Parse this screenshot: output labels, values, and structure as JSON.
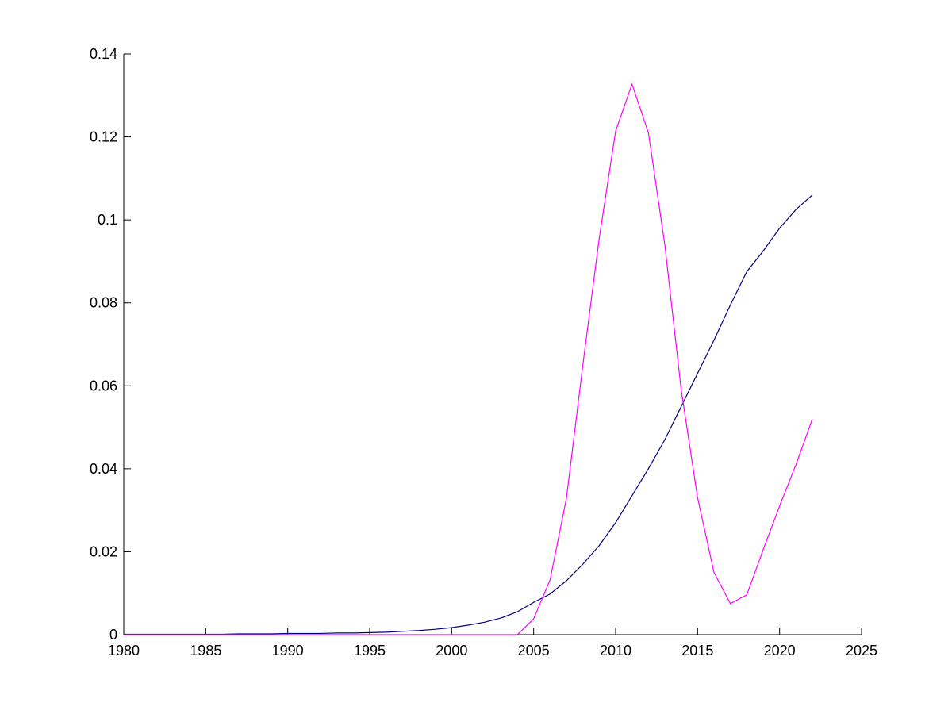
{
  "chart_data": {
    "type": "line",
    "x": [
      1980,
      1981,
      1982,
      1983,
      1984,
      1985,
      1986,
      1987,
      1988,
      1989,
      1990,
      1991,
      1992,
      1993,
      1994,
      1995,
      1996,
      1997,
      1998,
      1999,
      2000,
      2001,
      2002,
      2003,
      2004,
      2005,
      2006,
      2007,
      2008,
      2009,
      2010,
      2011,
      2012,
      2013,
      2014,
      2015,
      2016,
      2017,
      2018,
      2019,
      2020,
      2021,
      2022
    ],
    "series": [
      {
        "color": "#000080",
        "values": [
          0.0001,
          0.0001,
          0.0001,
          0.0001,
          0.0001,
          0.0001,
          0.0001,
          0.0002,
          0.0002,
          0.0002,
          0.0003,
          0.0003,
          0.0003,
          0.0004,
          0.0004,
          0.0005,
          0.0006,
          0.0008,
          0.001,
          0.0013,
          0.0017,
          0.0023,
          0.003,
          0.004,
          0.0055,
          0.0078,
          0.0098,
          0.013,
          0.017,
          0.0215,
          0.027,
          0.0335,
          0.04,
          0.047,
          0.055,
          0.063,
          0.071,
          0.0795,
          0.0875,
          0.0925,
          0.098,
          0.1025,
          0.106
        ]
      },
      {
        "color": "#ff00ff",
        "values": [
          0,
          0,
          0,
          0,
          0,
          0,
          0,
          0,
          0,
          0,
          0,
          0,
          0,
          0,
          0,
          0,
          0,
          0,
          0,
          0,
          0,
          0,
          0,
          0,
          0,
          0.0038,
          0.0132,
          0.0329,
          0.065,
          0.0956,
          0.1214,
          0.1327,
          0.121,
          0.094,
          0.059,
          0.033,
          0.015,
          0.0075,
          0.0096,
          0.0205,
          0.031,
          0.041,
          0.052
        ]
      }
    ],
    "xlim": [
      1980,
      2025
    ],
    "xticks": [
      1980,
      1985,
      1990,
      1995,
      2000,
      2005,
      2010,
      2015,
      2020,
      2025
    ],
    "ylim": [
      0,
      0.14
    ],
    "yticks": [
      0,
      0.02,
      0.04,
      0.06,
      0.08,
      0.1,
      0.12,
      0.14
    ]
  }
}
